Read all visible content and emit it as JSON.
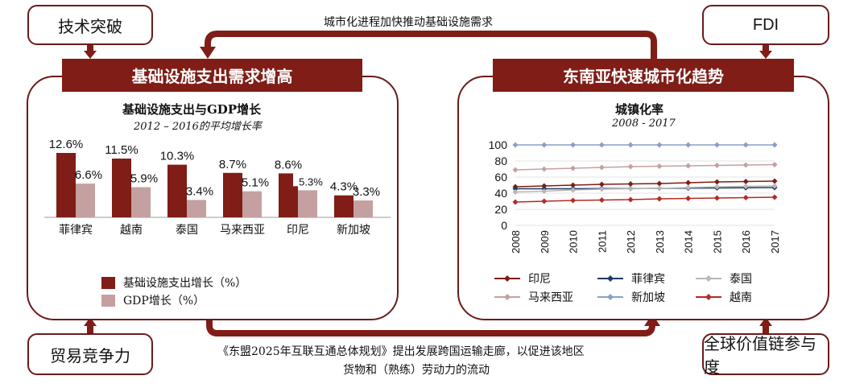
{
  "top_boxes": {
    "left": "技术突破",
    "right": "FDI"
  },
  "bottom_boxes": {
    "left": "贸易竞争力",
    "right": "全球价值链参与度"
  },
  "top_arrow_label": "城市化进程加快推动基础设施需求",
  "bottom_arrow_label_line1": "《东盟2025年互联互通总体规划》提出发展跨国运输走廊，以促进该地区",
  "bottom_arrow_label_line2": "货物和（熟练）劳动力的流动",
  "left_panel": {
    "banner": "基础设施支出需求增高",
    "chart_title": "基础设施支出与GDP增长",
    "chart_subtitle": "2012 – 2016的平均增长率",
    "legend": [
      "基础设施支出增长（%）",
      "GDP增长（%）"
    ]
  },
  "right_panel": {
    "banner": "东南亚快速城市化趋势",
    "chart_title": "城镇化率",
    "chart_subtitle": "2008 - 2017",
    "legend": [
      "印尼",
      "菲律宾",
      "泰国",
      "马来西亚",
      "新加坡",
      "越南"
    ]
  },
  "colors": {
    "dark_red": "#7f1d16",
    "light": "#c4a0a0",
    "border": "#6b1a1a"
  },
  "chart_data": [
    {
      "type": "bar",
      "title": "基础设施支出与GDP增长",
      "subtitle": "2012 – 2016的平均增长率",
      "categories": [
        "菲律宾",
        "越南",
        "泰国",
        "马来西亚",
        "印尼",
        "新加坡"
      ],
      "series": [
        {
          "name": "基础设施支出增长（%）",
          "values": [
            12.6,
            11.5,
            10.3,
            8.7,
            8.6,
            4.3
          ],
          "labels": [
            "12.6%",
            "11.5%",
            "10.3%",
            "8.7%",
            "8.6%",
            "4.3%"
          ]
        },
        {
          "name": "GDP增长（%）",
          "values": [
            6.6,
            5.9,
            3.4,
            5.1,
            5.3,
            3.3
          ],
          "labels": [
            "6.6%",
            "5.9%",
            "3.4%",
            "5.1%",
            "5.3%",
            "3.3%"
          ]
        }
      ],
      "ylim": [
        0,
        14
      ]
    },
    {
      "type": "line",
      "title": "城镇化率",
      "subtitle": "2008 - 2017",
      "x": [
        "2008",
        "2009",
        "2010",
        "2011",
        "2012",
        "2013",
        "2014",
        "2015",
        "2016",
        "2017"
      ],
      "yticks": [
        "0",
        "20",
        "40",
        "60",
        "80",
        "100"
      ],
      "ylim": [
        0,
        100
      ],
      "series": [
        {
          "name": "印尼",
          "color": "#7f1d16",
          "values": [
            48,
            49,
            50,
            51,
            51.5,
            52,
            53,
            54,
            54.5,
            55
          ]
        },
        {
          "name": "菲律宾",
          "color": "#1f3a60",
          "values": [
            45.5,
            45.5,
            45.5,
            45.7,
            45.8,
            46,
            46.2,
            46.5,
            46.8,
            47
          ]
        },
        {
          "name": "泰国",
          "color": "#b8b8b8",
          "values": [
            41.5,
            42.5,
            44,
            45,
            45.5,
            46,
            47,
            48,
            48.5,
            49
          ]
        },
        {
          "name": "马来西亚",
          "color": "#c4a0a0",
          "values": [
            69,
            70,
            71,
            72,
            73,
            73.5,
            74,
            74.5,
            75,
            75.5
          ]
        },
        {
          "name": "新加坡",
          "color": "#8a9fc8",
          "values": [
            100,
            100,
            100,
            100,
            100,
            100,
            100,
            100,
            100,
            100
          ]
        },
        {
          "name": "越南",
          "color": "#b52a24",
          "values": [
            29,
            30,
            31,
            31.5,
            32,
            33,
            33.5,
            34,
            34.5,
            35
          ]
        }
      ]
    }
  ]
}
